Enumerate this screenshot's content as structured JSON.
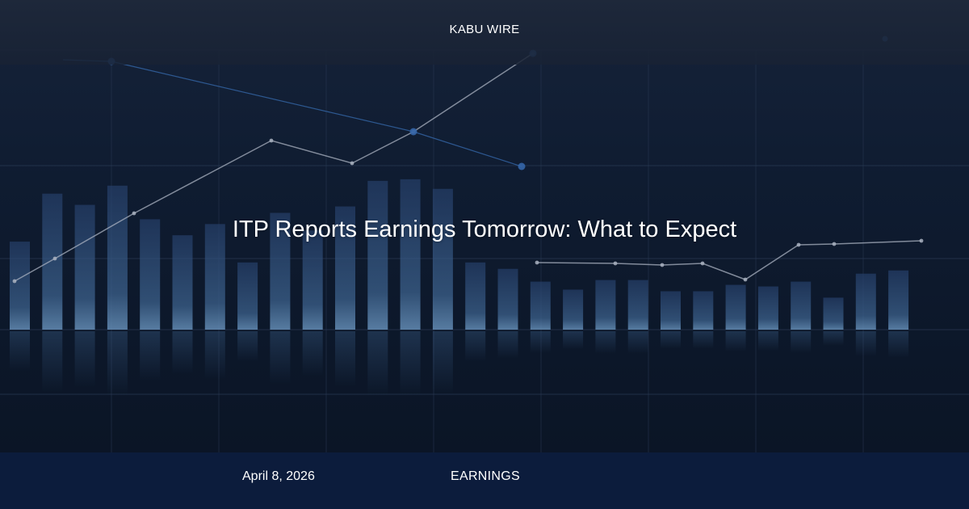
{
  "brand": {
    "name": "KABU WIRE"
  },
  "article": {
    "headline": "ITP Reports Earnings Tomorrow: What to Expect",
    "date": "April 8, 2026",
    "category": "EARNINGS"
  },
  "background": {
    "bars": [
      0.55,
      0.85,
      0.78,
      0.9,
      0.69,
      0.59,
      0.66,
      0.42,
      0.73,
      0.62,
      0.77,
      0.93,
      0.94,
      0.88,
      0.42,
      0.38,
      0.3,
      0.25,
      0.31,
      0.31,
      0.24,
      0.24,
      0.28,
      0.27,
      0.3,
      0.2,
      0.35,
      0.37
    ],
    "colors": {
      "bar_top": "#2a4470",
      "bar_bottom": "#5b86b0",
      "grid": "#2b3a55",
      "line_gray": "#a9b2c0",
      "line_blue": "#3566a8",
      "footer": "#0c1c3c"
    }
  }
}
